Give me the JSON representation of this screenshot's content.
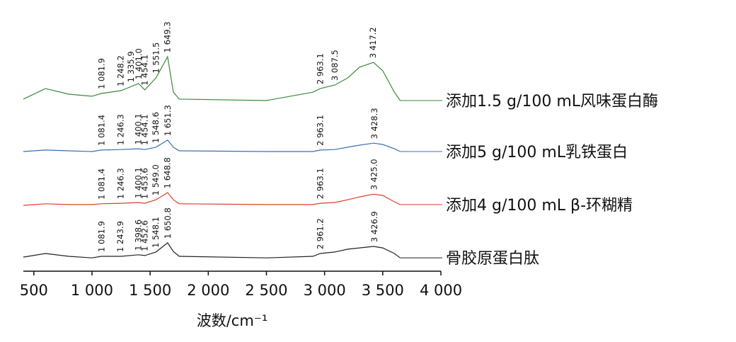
{
  "chart_data": {
    "type": "line",
    "x_label": "波数/cm⁻¹",
    "xlim": [
      410,
      4000
    ],
    "ylim": [
      0,
      100
    ],
    "xticks": [
      500,
      {
        "value": 1000,
        "label": "1 000"
      },
      {
        "value": 1500,
        "label": "1 500"
      },
      {
        "value": 2000,
        "label": "2 000"
      },
      {
        "value": 2500,
        "label": "2 500"
      },
      {
        "value": 3000,
        "label": "3 000"
      },
      {
        "value": 3500,
        "label": "3 500"
      },
      {
        "value": 4000,
        "label": "4 000"
      }
    ],
    "x": [
      410,
      600,
      800,
      1000,
      1080,
      1250,
      1400,
      1454,
      1550,
      1650,
      1700,
      1750,
      2500,
      2900,
      2963,
      3087,
      3200,
      3300,
      3420,
      3500,
      3600,
      3650
    ],
    "series": [
      {
        "name": "添加1.5 g/100 mL风味蛋白酶",
        "color": "#3a8a3a",
        "values": [
          66.7,
          70.8,
          68.6,
          67.8,
          68.9,
          70,
          72.8,
          70.3,
          75,
          83.3,
          69.4,
          66.7,
          66.1,
          69.4,
          70.8,
          72.2,
          75,
          79.2,
          81.1,
          77.8,
          69.4,
          66.1
        ],
        "peaks": [
          {
            "value": 1081.9,
            "label": "1 081.9"
          },
          {
            "value": 1248.2,
            "label": "1 248.2"
          },
          {
            "value": 1335.9,
            "label": "1 335.9"
          },
          {
            "value": 1401.0,
            "label": "1 401.0"
          },
          {
            "value": 1454.1,
            "label": "1 454.1"
          },
          {
            "value": 1551.5,
            "label": "1 551.5"
          },
          {
            "value": 1649.3,
            "label": "1 649.3"
          },
          {
            "value": 2963.1,
            "label": "2 963.1"
          },
          {
            "value": 3087.5,
            "label": "3 087.5"
          },
          {
            "value": 3417.2,
            "label": "3 417.2"
          }
        ]
      },
      {
        "name": "添加5 g/100 mL乳铁蛋白",
        "color": "#3b6fb0",
        "values": [
          46.1,
          46.7,
          46.4,
          46.1,
          46.7,
          46.9,
          47.2,
          46.9,
          47.8,
          50.6,
          47.8,
          46.4,
          46.1,
          46.1,
          46.7,
          46.9,
          47.8,
          48.6,
          49.4,
          48.9,
          47.2,
          46.1
        ],
        "peaks": [
          {
            "value": 1081.4,
            "label": "1 081.4"
          },
          {
            "value": 1246.3,
            "label": "1 246.3"
          },
          {
            "value": 1400.1,
            "label": "1 400.1"
          },
          {
            "value": 1454.1,
            "label": "1 454.1"
          },
          {
            "value": 1548.6,
            "label": "1 548.6"
          },
          {
            "value": 1651.3,
            "label": "1 651.3"
          },
          {
            "value": 2963.1,
            "label": "2 963.1"
          },
          {
            "value": 3428.3,
            "label": "3 428.3"
          }
        ]
      },
      {
        "name": "添加4 g/100 mL β-环糊精",
        "color": "#d8402a",
        "values": [
          25,
          25.6,
          25.3,
          25.3,
          25.6,
          25.8,
          26.1,
          25.8,
          27.2,
          30,
          27.2,
          25.6,
          25.3,
          25.3,
          25.8,
          26.1,
          27.2,
          28.3,
          29.4,
          28.9,
          26.4,
          25.3
        ],
        "peaks": [
          {
            "value": 1081.4,
            "label": "1 081.4"
          },
          {
            "value": 1246.3,
            "label": "1 246.3"
          },
          {
            "value": 1400.1,
            "label": "1 400.1"
          },
          {
            "value": 1453.6,
            "label": "1 453.6"
          },
          {
            "value": 1549.0,
            "label": "1 549.0"
          },
          {
            "value": 1648.8,
            "label": "1 648.8"
          },
          {
            "value": 2963.1,
            "label": "2 963.1"
          },
          {
            "value": 3425.0,
            "label": "3 425.0"
          }
        ]
      },
      {
        "name": "骨胶原蛋白肽",
        "color": "#222222",
        "values": [
          4.7,
          6.1,
          5,
          4.4,
          5,
          5,
          5.6,
          5.3,
          6.7,
          10.3,
          6.9,
          5,
          4.4,
          5,
          6.1,
          6.7,
          7.8,
          8.3,
          8.9,
          8.3,
          6.1,
          4.4
        ],
        "peaks": [
          {
            "value": 1081.9,
            "label": "1 081.9"
          },
          {
            "value": 1243.9,
            "label": "1 243.9"
          },
          {
            "value": 1398.6,
            "label": "1 398.6"
          },
          {
            "value": 1452.6,
            "label": "1 452.6"
          },
          {
            "value": 1548.1,
            "label": "1 548.1"
          },
          {
            "value": 1650.8,
            "label": "1 650.8"
          },
          {
            "value": 2961.2,
            "label": "2 961.2"
          },
          {
            "value": 3426.9,
            "label": "3 426.9"
          }
        ]
      }
    ]
  }
}
